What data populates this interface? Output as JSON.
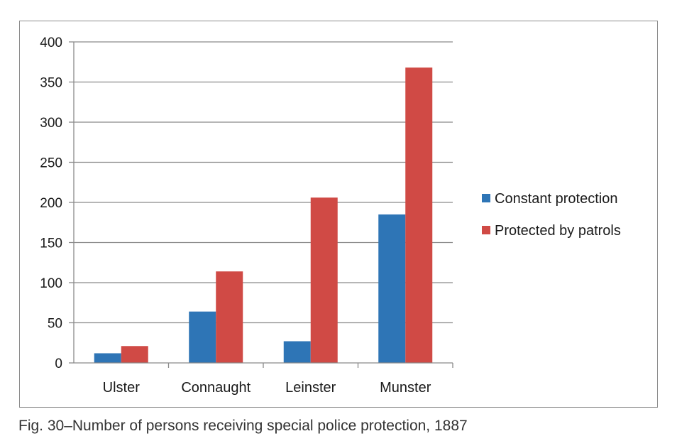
{
  "chart_data": {
    "type": "bar",
    "categories": [
      "Ulster",
      "Connaught",
      "Leinster",
      "Munster"
    ],
    "series": [
      {
        "name": "Constant protection",
        "values": [
          12,
          64,
          27,
          185
        ],
        "color": "#2e75b6"
      },
      {
        "name": "Protected by patrols",
        "values": [
          21,
          114,
          206,
          368
        ],
        "color": "#d04a45"
      }
    ],
    "ylim": [
      0,
      400
    ],
    "yticks": [
      0,
      50,
      100,
      150,
      200,
      250,
      300,
      350,
      400
    ],
    "grid": true,
    "legend_position": "right"
  },
  "caption": "Fig. 30–Number of persons receiving special police protection, 1887"
}
